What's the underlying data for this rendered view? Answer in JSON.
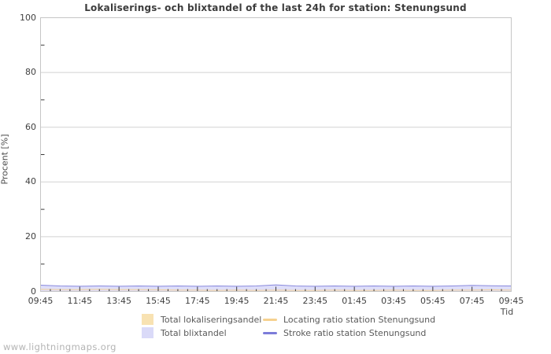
{
  "title": "Lokaliserings- och blixtandel of the last 24h for station: Stenungsund",
  "watermark": "www.lightningmaps.org",
  "axes": {
    "y_title": "Procent  [%]",
    "x_title": "Tid",
    "y_major_ticks": [
      0,
      20,
      40,
      60,
      80,
      100
    ],
    "y_minor_ticks": [
      10,
      30,
      50,
      70,
      90
    ],
    "x_tick_labels": [
      "09:45",
      "11:45",
      "13:45",
      "15:45",
      "17:45",
      "19:45",
      "21:45",
      "23:45",
      "01:45",
      "03:45",
      "05:45",
      "07:45",
      "09:45"
    ]
  },
  "colors": {
    "grid": "#d2d2d2",
    "plot_border": "#c6c6c6",
    "tick": "#3a3a3a",
    "title_text": "#3c3c3c",
    "legend_text": "#5a5a5a",
    "watermark_text": "#b4b4b4"
  },
  "chart_data": {
    "type": "area",
    "title": "Lokaliserings- och blixtandel of the last 24h for station: Stenungsund",
    "xlabel": "Tid",
    "ylabel": "Procent [%]",
    "ylim": [
      0,
      100
    ],
    "grid": true,
    "legend_position": "bottom",
    "x_hours_span": 24,
    "x_tick_interval_hours": 2,
    "x_minor_tick_interval_hours": 0.5,
    "x_tick_labels": [
      "09:45",
      "11:45",
      "13:45",
      "15:45",
      "17:45",
      "19:45",
      "21:45",
      "23:45",
      "01:45",
      "03:45",
      "05:45",
      "07:45",
      "09:45"
    ],
    "x_hours": [
      0,
      1,
      2,
      3,
      4,
      5,
      6,
      7,
      8,
      9,
      10,
      11,
      12,
      13,
      14,
      15,
      16,
      17,
      18,
      19,
      20,
      21,
      22,
      23,
      24
    ],
    "series": [
      {
        "name": "Total lokaliseringsandel",
        "render": "area",
        "color": "#f8e2b2",
        "values": [
          0.8,
          0.7,
          0.7,
          0.8,
          0.7,
          0.7,
          0.6,
          0.5,
          0.5,
          0.4,
          0.5,
          0.4,
          0.5,
          0.4,
          0.4,
          0.5,
          0.4,
          0.4,
          0.5,
          0.4,
          0.4,
          0.5,
          0.5,
          0.6,
          0.5
        ]
      },
      {
        "name": "Total blixtandel",
        "render": "area",
        "color": "#dadaf8",
        "values": [
          2.3,
          2.0,
          1.9,
          2.0,
          1.9,
          2.0,
          1.9,
          2.0,
          1.9,
          2.0,
          1.9,
          2.0,
          2.4,
          2.0,
          1.9,
          2.0,
          1.9,
          2.0,
          1.9,
          2.0,
          1.9,
          2.0,
          2.2,
          2.1,
          2.0
        ]
      },
      {
        "name": "Locating ratio station Stenungsund",
        "render": "line",
        "color": "#f6d18f",
        "values": [
          0.8,
          0.7,
          0.7,
          0.8,
          0.7,
          0.7,
          0.6,
          0.5,
          0.5,
          0.4,
          0.5,
          0.4,
          0.5,
          0.4,
          0.4,
          0.5,
          0.4,
          0.4,
          0.5,
          0.4,
          0.4,
          0.5,
          0.5,
          0.6,
          0.5
        ]
      },
      {
        "name": "Stroke ratio station Stenungsund",
        "render": "line",
        "color": "#7c7cd9",
        "values": [
          2.3,
          2.0,
          1.9,
          2.0,
          1.9,
          2.0,
          1.9,
          2.0,
          1.9,
          2.0,
          1.9,
          2.0,
          2.4,
          2.0,
          1.9,
          2.0,
          1.9,
          2.0,
          1.9,
          2.0,
          1.9,
          2.0,
          2.2,
          2.1,
          2.0
        ]
      }
    ]
  }
}
